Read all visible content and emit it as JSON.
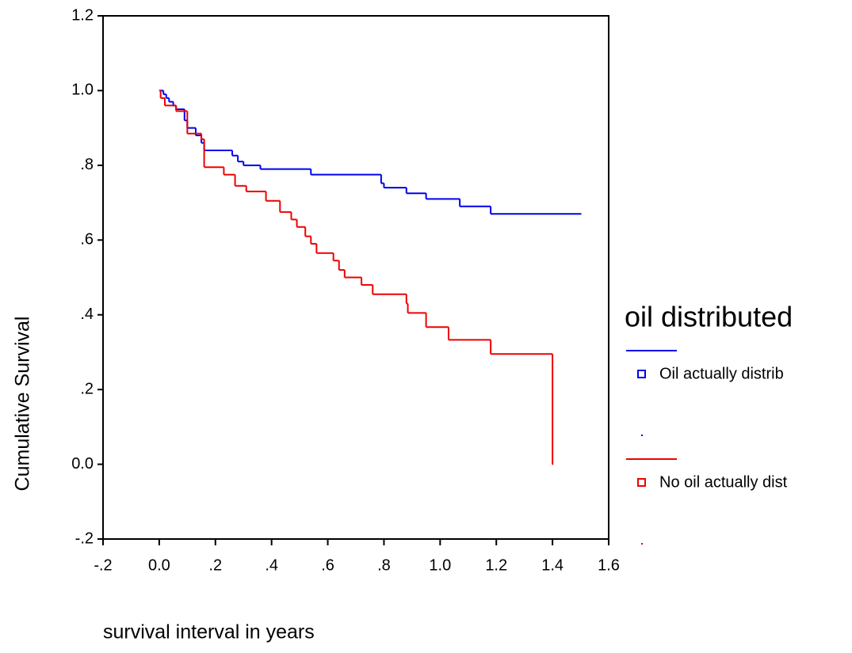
{
  "chart_data": {
    "type": "step",
    "x_label": "survival interval in years",
    "y_label": "Cumulative Survival",
    "legend_title": "oil distributed",
    "xlim": [
      -0.2,
      1.6
    ],
    "ylim": [
      -0.2,
      1.2
    ],
    "xticks": [
      {
        "value": -0.2,
        "label": "-.2"
      },
      {
        "value": 0,
        "label": "0.0"
      },
      {
        "value": 0.2,
        "label": ".2"
      },
      {
        "value": 0.4,
        "label": ".4"
      },
      {
        "value": 0.6,
        "label": ".6"
      },
      {
        "value": 0.8,
        "label": ".8"
      },
      {
        "value": 1,
        "label": "1.0"
      },
      1.2,
      1.4,
      1.6
    ],
    "yticks": [
      {
        "value": -0.2,
        "label": "-.2"
      },
      {
        "value": 0,
        "label": "0.0"
      },
      {
        "value": 0.2,
        "label": ".2"
      },
      {
        "value": 0.4,
        "label": ".4"
      },
      {
        "value": 0.6,
        "label": ".6"
      },
      {
        "value": 0.8,
        "label": ".8"
      },
      {
        "value": 1,
        "label": "1.0"
      },
      1.2
    ],
    "series": [
      {
        "name": "Oil actually distrib",
        "color": "#0000ee",
        "x": [
          0,
          0.015,
          0.025,
          0.035,
          0.05,
          0.06,
          0.09,
          0.1,
          0.13,
          0.15,
          0.16,
          0.26,
          0.28,
          0.3,
          0.36,
          0.54,
          0.79,
          0.8,
          0.88,
          0.95,
          1.07,
          1.18,
          1.5
        ],
        "values": [
          1.0,
          0.99,
          0.98,
          0.97,
          0.96,
          0.95,
          0.92,
          0.9,
          0.88,
          0.86,
          0.84,
          0.826,
          0.81,
          0.8,
          0.79,
          0.775,
          0.752,
          0.74,
          0.725,
          0.71,
          0.69,
          0.67,
          0.67
        ]
      },
      {
        "name": "No oil actually dist",
        "color": "#ee0000",
        "x": [
          0,
          0.005,
          0.02,
          0.06,
          0.1,
          0.15,
          0.16,
          0.23,
          0.27,
          0.31,
          0.38,
          0.43,
          0.47,
          0.49,
          0.52,
          0.54,
          0.56,
          0.62,
          0.64,
          0.66,
          0.72,
          0.76,
          0.88,
          0.885,
          0.95,
          1.03,
          1.18,
          1.4
        ],
        "values": [
          1.0,
          0.98,
          0.96,
          0.945,
          0.885,
          0.87,
          0.795,
          0.775,
          0.745,
          0.73,
          0.705,
          0.675,
          0.655,
          0.635,
          0.61,
          0.59,
          0.565,
          0.545,
          0.52,
          0.5,
          0.48,
          0.455,
          0.43,
          0.405,
          0.367,
          0.333,
          0.295,
          0
        ]
      }
    ]
  }
}
